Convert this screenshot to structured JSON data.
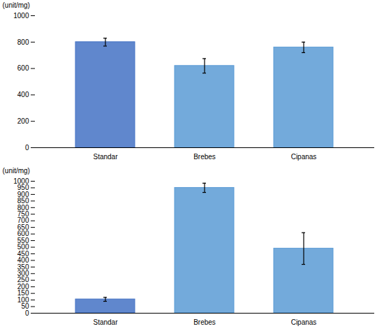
{
  "chart_data": [
    {
      "type": "bar",
      "ylabel": "(unit/mg)",
      "categories": [
        "Standar",
        "Brebes",
        "Cipanas"
      ],
      "values": [
        800,
        620,
        760
      ],
      "errors": [
        30,
        55,
        40
      ],
      "colors": [
        "#4472C4",
        "#5B9BD5",
        "#5B9BD5"
      ],
      "ylim": [
        0,
        1000
      ],
      "yticks": [
        0,
        200,
        400,
        600,
        800,
        1000
      ]
    },
    {
      "type": "bar",
      "ylabel": "(unit/mg)",
      "categories": [
        "Standar",
        "Brebes",
        "Cipanas"
      ],
      "values": [
        105,
        950,
        490
      ],
      "errors": [
        15,
        35,
        120
      ],
      "colors": [
        "#4472C4",
        "#5B9BD5",
        "#5B9BD5"
      ],
      "ylim": [
        0,
        1000
      ],
      "yticks": [
        0,
        50,
        100,
        150,
        200,
        250,
        300,
        350,
        400,
        450,
        500,
        550,
        600,
        650,
        700,
        750,
        800,
        850,
        900,
        950,
        1000
      ]
    }
  ]
}
